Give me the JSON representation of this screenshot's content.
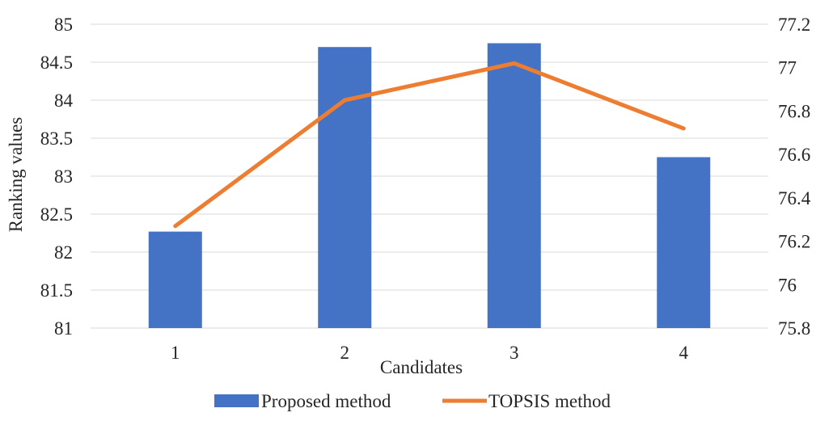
{
  "chart_data": {
    "type": "bar",
    "categories": [
      "1",
      "2",
      "3",
      "4"
    ],
    "xlabel": "Candidates",
    "ylabel": "Ranking values",
    "y_left": {
      "lim": [
        81,
        85
      ],
      "ticks": [
        "81",
        "81.5",
        "82",
        "82.5",
        "83",
        "83.5",
        "84",
        "84.5",
        "85"
      ]
    },
    "y_right": {
      "lim": [
        75.8,
        77.2
      ],
      "ticks": [
        "75.8",
        "76",
        "76.2",
        "76.4",
        "76.6",
        "76.8",
        "77",
        "77.2"
      ]
    },
    "series": [
      {
        "name": "Proposed method",
        "type": "bar",
        "axis": "left",
        "color": "#4472c4",
        "values": [
          82.27,
          84.7,
          84.75,
          83.25
        ]
      },
      {
        "name": "TOPSIS method",
        "type": "line",
        "axis": "right",
        "color": "#ed7d31",
        "values": [
          76.27,
          76.85,
          77.02,
          76.72
        ]
      }
    ],
    "grid": true,
    "legend": "bottom"
  }
}
